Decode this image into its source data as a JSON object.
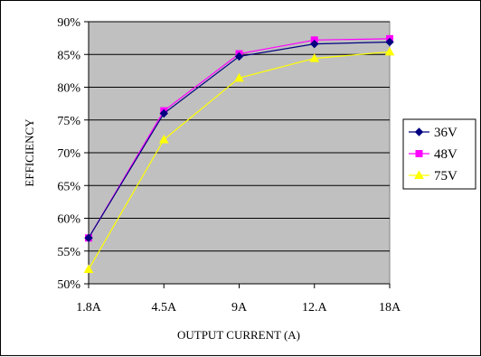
{
  "chart_data": {
    "type": "line",
    "categories": [
      "1.8A",
      "4.5A",
      "9A",
      "12.A",
      "18A"
    ],
    "xlabel": "OUTPUT CURRENT (A)",
    "ylabel": "EFFICIENCY",
    "ylim": [
      50,
      90
    ],
    "yticks": [
      "50%",
      "55%",
      "60%",
      "65%",
      "70%",
      "75%",
      "80%",
      "85%",
      "90%"
    ],
    "ytick_values": [
      50,
      55,
      60,
      65,
      70,
      75,
      80,
      85,
      90
    ],
    "grid": true,
    "legend_position": "right",
    "plot_background": "#c0c0c0",
    "series": [
      {
        "name": "36V",
        "values": [
          57.0,
          76.0,
          84.7,
          86.6,
          86.9
        ],
        "color": "#000080",
        "marker": "diamond"
      },
      {
        "name": "48V",
        "values": [
          57.0,
          76.4,
          85.1,
          87.2,
          87.4
        ],
        "color": "#ff00ff",
        "marker": "square"
      },
      {
        "name": "75V",
        "values": [
          52.2,
          72.0,
          81.4,
          84.4,
          85.4
        ],
        "color": "#ffff00",
        "marker": "triangle"
      }
    ]
  }
}
